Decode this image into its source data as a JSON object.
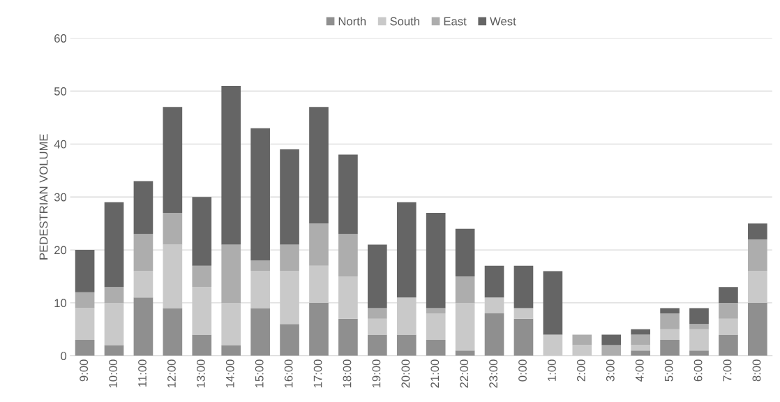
{
  "chart_data": {
    "type": "bar",
    "stacked": true,
    "ylabel": "PEDESTRIAN VOLUME",
    "categories": [
      "9:00",
      "10:00",
      "11:00",
      "12:00",
      "13:00",
      "14:00",
      "15:00",
      "16:00",
      "17:00",
      "18:00",
      "19:00",
      "20:00",
      "21:00",
      "22:00",
      "23:00",
      "0:00",
      "1:00",
      "2:00",
      "3:00",
      "4:00",
      "5:00",
      "6:00",
      "7:00",
      "8:00"
    ],
    "series": [
      {
        "name": "North",
        "color": "#8f8f8f",
        "values": [
          3,
          2,
          11,
          9,
          4,
          2,
          9,
          6,
          10,
          7,
          4,
          4,
          3,
          1,
          8,
          7,
          0,
          0,
          0,
          1,
          3,
          1,
          4,
          10
        ]
      },
      {
        "name": "South",
        "color": "#c9c9c9",
        "values": [
          6,
          8,
          5,
          12,
          9,
          8,
          7,
          10,
          7,
          8,
          3,
          7,
          5,
          9,
          3,
          2,
          4,
          2,
          0,
          1,
          2,
          4,
          3,
          6
        ]
      },
      {
        "name": "East",
        "color": "#adadad",
        "values": [
          3,
          3,
          7,
          6,
          4,
          11,
          2,
          5,
          8,
          8,
          2,
          0,
          1,
          5,
          0,
          0,
          0,
          2,
          2,
          2,
          3,
          1,
          3,
          6
        ]
      },
      {
        "name": "West",
        "color": "#656565",
        "values": [
          8,
          16,
          10,
          20,
          13,
          30,
          25,
          18,
          22,
          15,
          12,
          18,
          18,
          9,
          6,
          8,
          12,
          0,
          2,
          1,
          1,
          3,
          3,
          3
        ]
      }
    ],
    "ylim": [
      0,
      60
    ],
    "yticks": [
      0,
      10,
      20,
      30,
      40,
      50,
      60
    ],
    "grid": "y",
    "legend": "top"
  }
}
